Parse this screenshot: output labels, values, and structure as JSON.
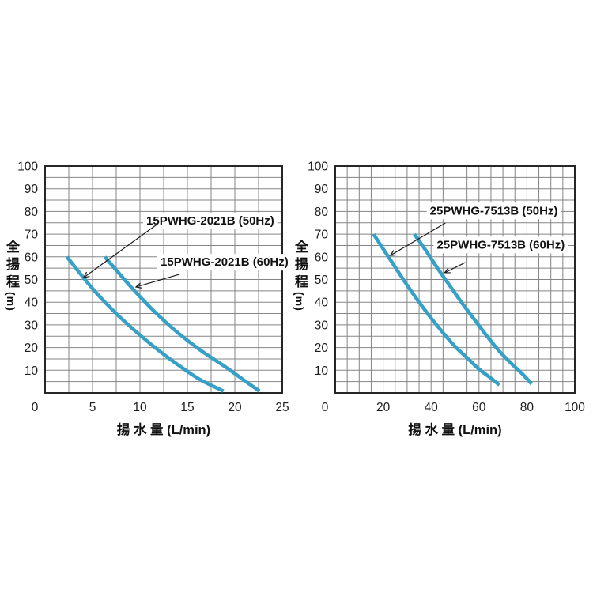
{
  "page": {
    "background": "#ffffff"
  },
  "colors": {
    "curve": "#37A0C6",
    "grid": "#858585",
    "axis": "#262626",
    "tick_text": "#1d1d1d",
    "annotation_text": "#111111",
    "arrow": "#1a1a1a",
    "halo": "#ffffff"
  },
  "chart_data": [
    {
      "type": "line",
      "title": "",
      "xlabel": "揚 水 量 (L/min)",
      "ylabel_kanji": "全揚程",
      "ylabel_unit": "(m)",
      "xlim": [
        0,
        25
      ],
      "ylim": [
        0,
        100
      ],
      "x_minor": 2.5,
      "y_minor": 5,
      "grid": true,
      "legend_position": "none",
      "x_ticks": [
        0,
        5,
        10,
        15,
        20,
        25
      ],
      "y_ticks": [
        10,
        20,
        30,
        40,
        50,
        60,
        70,
        80,
        90,
        100
      ],
      "series": [
        {
          "name": "15PWHG-2021B (50Hz)",
          "hz": "50Hz",
          "points": [
            [
              2.3,
              60
            ],
            [
              5,
              46
            ],
            [
              7.5,
              35
            ],
            [
              10,
              25.5
            ],
            [
              12.5,
              17
            ],
            [
              15,
              9.5
            ],
            [
              16.5,
              5.5
            ],
            [
              18.8,
              0.8
            ]
          ]
        },
        {
          "name": "15PWHG-2021B (60Hz)",
          "hz": "60Hz",
          "points": [
            [
              6.3,
              60
            ],
            [
              9,
              47
            ],
            [
              11.5,
              36
            ],
            [
              14,
              26.5
            ],
            [
              16.5,
              18.5
            ],
            [
              19,
              11.5
            ],
            [
              21,
              5.5
            ],
            [
              22.6,
              0.8
            ]
          ]
        }
      ],
      "annotations": [
        {
          "text": "15PWHG-2021B (50Hz)",
          "label_x": 10.67,
          "label_y": 76.0,
          "arrow_from": [
            11.9,
            74.6
          ],
          "arrow_to": [
            4.08,
            50.9
          ]
        },
        {
          "text": "15PWHG-2021B (60Hz)",
          "label_x": 12.17,
          "label_y": 57.8,
          "arrow_from": [
            14.17,
            52.3
          ],
          "arrow_to": [
            9.58,
            46.7
          ]
        }
      ]
    },
    {
      "type": "line",
      "title": "",
      "xlabel": "揚 水 量 (L/min)",
      "ylabel_kanji": "全揚程",
      "ylabel_unit": "(m)",
      "xlim": [
        0,
        100
      ],
      "ylim": [
        0,
        100
      ],
      "x_minor": 5,
      "y_minor": 5,
      "grid": true,
      "legend_position": "none",
      "x_ticks": [
        0,
        20,
        40,
        60,
        80,
        100
      ],
      "y_ticks": [
        10,
        20,
        30,
        40,
        50,
        60,
        70,
        80,
        90,
        100
      ],
      "series": [
        {
          "name": "25PWHG-7513B (50Hz)",
          "hz": "50Hz",
          "points": [
            [
              16,
              70
            ],
            [
              20,
              63.5
            ],
            [
              25,
              55.5
            ],
            [
              30,
              47.5
            ],
            [
              35,
              40
            ],
            [
              40,
              33
            ],
            [
              45,
              26.5
            ],
            [
              50,
              20.5
            ],
            [
              55,
              15.5
            ],
            [
              60,
              10.5
            ],
            [
              65,
              6.5
            ],
            [
              68.5,
              3.5
            ]
          ]
        },
        {
          "name": "25PWHG-7513B (60Hz)",
          "hz": "60Hz",
          "points": [
            [
              33,
              70
            ],
            [
              38,
              62.5
            ],
            [
              43,
              54.5
            ],
            [
              48,
              47
            ],
            [
              53,
              39.5
            ],
            [
              58,
              32.5
            ],
            [
              63,
              25.5
            ],
            [
              68,
              19
            ],
            [
              73,
              13.5
            ],
            [
              78,
              8.5
            ],
            [
              82,
              4
            ]
          ]
        }
      ],
      "annotations": [
        {
          "text": "25PWHG-7513B (50Hz)",
          "label_x": 39.5,
          "label_y": 80.4,
          "arrow_from": [
            46.0,
            74.9
          ],
          "arrow_to": [
            23.0,
            60.6
          ]
        },
        {
          "text": "25PWHG-7513B (60Hz)",
          "label_x": 42.4,
          "label_y": 65.4,
          "arrow_from": [
            54.3,
            57.5
          ],
          "arrow_to": [
            45.7,
            53.0
          ]
        }
      ]
    }
  ]
}
